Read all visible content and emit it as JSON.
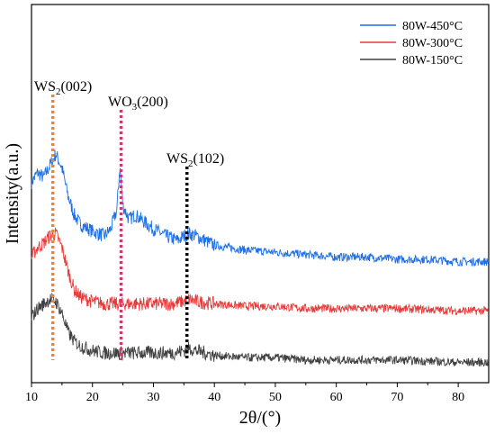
{
  "chart_data": {
    "type": "line",
    "title": "",
    "xlabel": "2θ/(°)",
    "ylabel": "Intensity(a.u.)",
    "xlim": [
      10,
      85
    ],
    "x_ticks": [
      "10",
      "20",
      "30",
      "40",
      "50",
      "60",
      "70",
      "80"
    ],
    "y_ticks_shown": false,
    "legend_position": "top-right",
    "series": [
      {
        "name": "80W-450°C",
        "color": "#1f6fe5",
        "points": [
          [
            10,
            0.78
          ],
          [
            11,
            0.82
          ],
          [
            12,
            0.8
          ],
          [
            13,
            0.85
          ],
          [
            14,
            0.9
          ],
          [
            15,
            0.84
          ],
          [
            16,
            0.72
          ],
          [
            17,
            0.64
          ],
          [
            18,
            0.6
          ],
          [
            20,
            0.57
          ],
          [
            22,
            0.55
          ],
          [
            23,
            0.58
          ],
          [
            24,
            0.66
          ],
          [
            24.5,
            0.85
          ],
          [
            25,
            0.68
          ],
          [
            26,
            0.62
          ],
          [
            27,
            0.64
          ],
          [
            28,
            0.62
          ],
          [
            30,
            0.58
          ],
          [
            32,
            0.55
          ],
          [
            34,
            0.53
          ],
          [
            35,
            0.55
          ],
          [
            36,
            0.56
          ],
          [
            37,
            0.55
          ],
          [
            40,
            0.51
          ],
          [
            45,
            0.49
          ],
          [
            50,
            0.48
          ],
          [
            55,
            0.47
          ],
          [
            60,
            0.46
          ],
          [
            65,
            0.46
          ],
          [
            70,
            0.45
          ],
          [
            75,
            0.45
          ],
          [
            80,
            0.44
          ],
          [
            85,
            0.44
          ]
        ]
      },
      {
        "name": "80W-300°C",
        "color": "#e83a3a",
        "points": [
          [
            10,
            0.46
          ],
          [
            11,
            0.5
          ],
          [
            12,
            0.52
          ],
          [
            13,
            0.55
          ],
          [
            14,
            0.56
          ],
          [
            15,
            0.5
          ],
          [
            16,
            0.4
          ],
          [
            17,
            0.32
          ],
          [
            18,
            0.29
          ],
          [
            20,
            0.27
          ],
          [
            22,
            0.26
          ],
          [
            25,
            0.26
          ],
          [
            28,
            0.26
          ],
          [
            30,
            0.26
          ],
          [
            33,
            0.26
          ],
          [
            35,
            0.27
          ],
          [
            36,
            0.28
          ],
          [
            37,
            0.27
          ],
          [
            40,
            0.26
          ],
          [
            45,
            0.25
          ],
          [
            50,
            0.25
          ],
          [
            55,
            0.24
          ],
          [
            60,
            0.24
          ],
          [
            70,
            0.24
          ],
          [
            80,
            0.23
          ],
          [
            85,
            0.23
          ]
        ]
      },
      {
        "name": "80W-150°C",
        "color": "#404040",
        "points": [
          [
            10,
            0.2
          ],
          [
            11,
            0.24
          ],
          [
            12,
            0.26
          ],
          [
            13,
            0.28
          ],
          [
            14,
            0.27
          ],
          [
            15,
            0.22
          ],
          [
            16,
            0.14
          ],
          [
            17,
            0.1
          ],
          [
            18,
            0.08
          ],
          [
            20,
            0.06
          ],
          [
            22,
            0.05
          ],
          [
            25,
            0.05
          ],
          [
            28,
            0.05
          ],
          [
            30,
            0.05
          ],
          [
            33,
            0.05
          ],
          [
            35,
            0.06
          ],
          [
            36,
            0.07
          ],
          [
            37,
            0.06
          ],
          [
            40,
            0.04
          ],
          [
            45,
            0.03
          ],
          [
            50,
            0.03
          ],
          [
            55,
            0.02
          ],
          [
            60,
            0.02
          ],
          [
            70,
            0.02
          ],
          [
            80,
            0.01
          ],
          [
            85,
            0.01
          ]
        ]
      }
    ],
    "reference_lines": [
      {
        "x": 13.5,
        "color": "#f0861c",
        "label": "WS",
        "label_sub": "2",
        "label_suffix": "(002)"
      },
      {
        "x": 24.7,
        "color": "#e0306a",
        "label": "WO",
        "label_sub": "3",
        "label_suffix": "(200)"
      },
      {
        "x": 35.5,
        "color": "#000000",
        "label": "WS",
        "label_sub": "2",
        "label_suffix": "(102)"
      }
    ]
  }
}
